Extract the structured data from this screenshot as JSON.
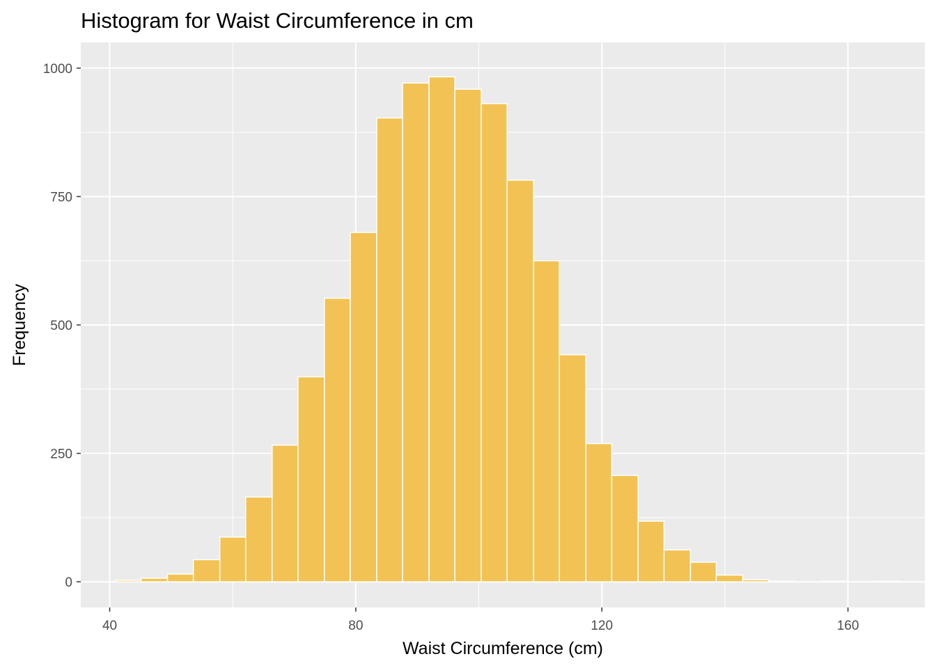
{
  "chart_data": {
    "type": "bar",
    "title": "Histogram for Waist Circumference in cm",
    "xlabel": "Waist Circumference (cm)",
    "ylabel": "Frequency",
    "xlim": [
      35.3,
      172.5
    ],
    "ylim": [
      -50,
      1050
    ],
    "bin_width": 4.25,
    "bins": [
      {
        "start": 40.9,
        "end": 45.1,
        "count": 3
      },
      {
        "start": 45.1,
        "end": 49.4,
        "count": 7
      },
      {
        "start": 49.4,
        "end": 53.6,
        "count": 15
      },
      {
        "start": 53.6,
        "end": 57.9,
        "count": 43
      },
      {
        "start": 57.9,
        "end": 62.1,
        "count": 87
      },
      {
        "start": 62.1,
        "end": 66.4,
        "count": 165
      },
      {
        "start": 66.4,
        "end": 70.6,
        "count": 266
      },
      {
        "start": 70.6,
        "end": 74.9,
        "count": 399
      },
      {
        "start": 74.9,
        "end": 79.1,
        "count": 552
      },
      {
        "start": 79.1,
        "end": 83.4,
        "count": 680
      },
      {
        "start": 83.4,
        "end": 87.6,
        "count": 903
      },
      {
        "start": 87.6,
        "end": 91.9,
        "count": 971
      },
      {
        "start": 91.9,
        "end": 96.1,
        "count": 983
      },
      {
        "start": 96.1,
        "end": 100.4,
        "count": 959
      },
      {
        "start": 100.4,
        "end": 104.6,
        "count": 931
      },
      {
        "start": 104.6,
        "end": 108.9,
        "count": 782
      },
      {
        "start": 108.9,
        "end": 113.1,
        "count": 625
      },
      {
        "start": 113.1,
        "end": 117.4,
        "count": 442
      },
      {
        "start": 117.4,
        "end": 121.6,
        "count": 269
      },
      {
        "start": 121.6,
        "end": 125.9,
        "count": 207
      },
      {
        "start": 125.9,
        "end": 130.1,
        "count": 118
      },
      {
        "start": 130.1,
        "end": 134.4,
        "count": 62
      },
      {
        "start": 134.4,
        "end": 138.6,
        "count": 38
      },
      {
        "start": 138.6,
        "end": 142.9,
        "count": 13
      },
      {
        "start": 142.9,
        "end": 147.1,
        "count": 4
      },
      {
        "start": 147.1,
        "end": 151.4,
        "count": 1
      },
      {
        "start": 151.4,
        "end": 155.6,
        "count": 0
      },
      {
        "start": 155.6,
        "end": 159.9,
        "count": 1
      },
      {
        "start": 159.9,
        "end": 164.1,
        "count": 0
      },
      {
        "start": 164.1,
        "end": 168.4,
        "count": 1
      }
    ],
    "x_ticks": [
      40,
      80,
      120,
      160
    ],
    "x_tick_labels": [
      "40",
      "80",
      "120",
      "160"
    ],
    "x_minor_ticks": [
      60,
      100,
      140
    ],
    "y_ticks": [
      0,
      250,
      500,
      750,
      1000
    ],
    "y_tick_labels": [
      "0",
      "250",
      "500",
      "750",
      "1000"
    ],
    "y_minor_ticks": [
      125,
      375,
      625,
      875
    ],
    "grid": true,
    "legend": "none",
    "colors": {
      "bar_fill": "#f2c354",
      "bar_outline": "#ffffff",
      "panel_background": "#ebebeb",
      "grid_line": "#ffffff",
      "tick_color": "#333333",
      "tick_label": "#4d4d4d"
    }
  }
}
